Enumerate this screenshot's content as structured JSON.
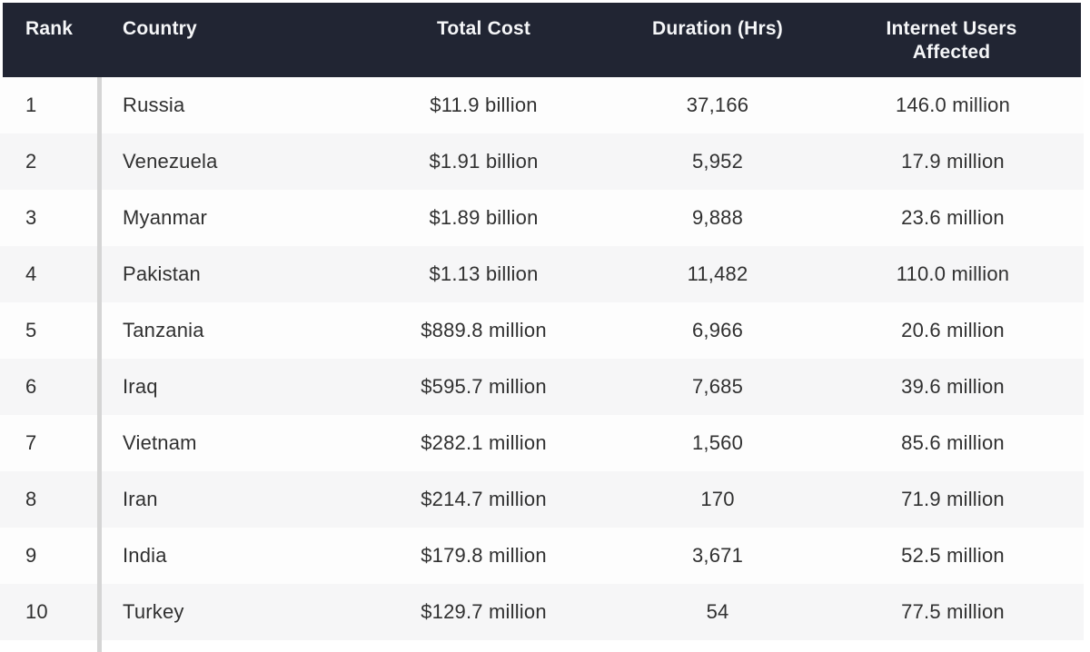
{
  "chart_data": {
    "type": "table",
    "columns": [
      "Rank",
      "Country",
      "Total Cost",
      "Duration (Hrs)",
      "Internet Users Affected"
    ],
    "rows": [
      {
        "rank": "1",
        "country": "Russia",
        "total_cost": "$11.9 billion",
        "duration_hrs": "37,166",
        "users_affected": "146.0 million"
      },
      {
        "rank": "2",
        "country": "Venezuela",
        "total_cost": "$1.91 billion",
        "duration_hrs": "5,952",
        "users_affected": "17.9 million"
      },
      {
        "rank": "3",
        "country": "Myanmar",
        "total_cost": "$1.89 billion",
        "duration_hrs": "9,888",
        "users_affected": "23.6 million"
      },
      {
        "rank": "4",
        "country": "Pakistan",
        "total_cost": "$1.13 billion",
        "duration_hrs": "11,482",
        "users_affected": "110.0 million"
      },
      {
        "rank": "5",
        "country": "Tanzania",
        "total_cost": "$889.8 million",
        "duration_hrs": "6,966",
        "users_affected": "20.6 million"
      },
      {
        "rank": "6",
        "country": "Iraq",
        "total_cost": "$595.7 million",
        "duration_hrs": "7,685",
        "users_affected": "39.6 million"
      },
      {
        "rank": "7",
        "country": "Vietnam",
        "total_cost": "$282.1 million",
        "duration_hrs": "1,560",
        "users_affected": "85.6 million"
      },
      {
        "rank": "8",
        "country": "Iran",
        "total_cost": "$214.7 million",
        "duration_hrs": "170",
        "users_affected": "71.9 million"
      },
      {
        "rank": "9",
        "country": "India",
        "total_cost": "$179.8 million",
        "duration_hrs": "3,671",
        "users_affected": "52.5 million"
      },
      {
        "rank": "10",
        "country": "Turkey",
        "total_cost": "$129.7 million",
        "duration_hrs": "54",
        "users_affected": "77.5 million"
      }
    ]
  },
  "colors": {
    "header_bg": "#212533",
    "header_text": "#f5f6f8",
    "row_bg": "#fdfdfd",
    "row_alt_bg": "#f6f6f7",
    "divider": "#d5d5d5",
    "body_text": "#303030"
  }
}
